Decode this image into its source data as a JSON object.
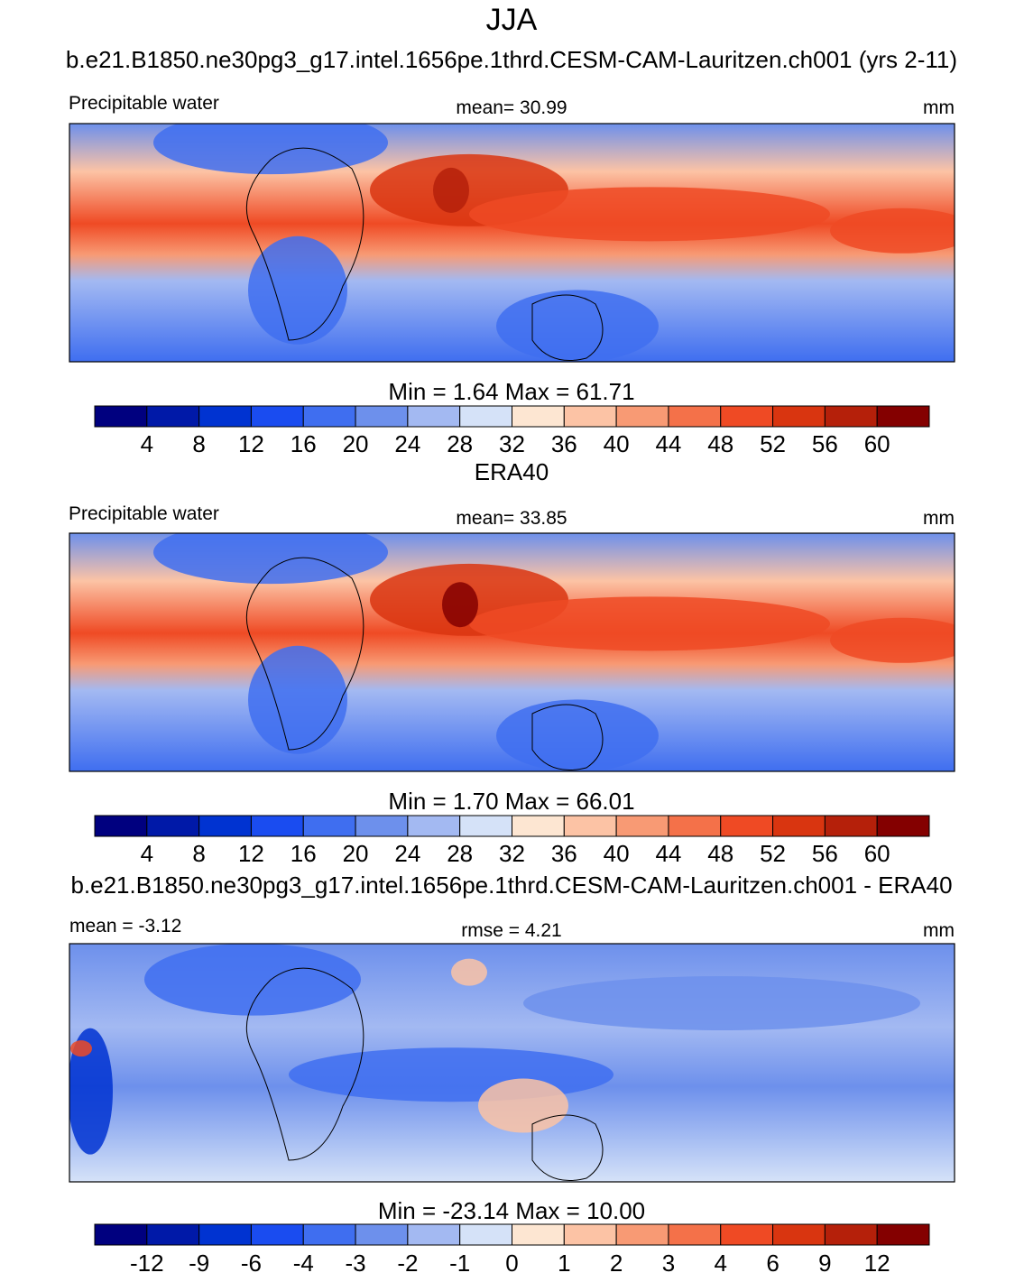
{
  "title": "JJA",
  "panels": [
    {
      "heading": "b.e21.B1850.ne30pg3_g17.intel.1656pe.1thrd.CESM-CAM-Lauritzen.ch001 (yrs 2-11)",
      "left_label": "Precipitable water",
      "center_label": "mean=  30.99",
      "right_label": "mm",
      "minmax": "Min =   1.64 Max =  61.71",
      "colorbar": {
        "colors": [
          "#00007f",
          "#0019a8",
          "#0033d1",
          "#1a4cf0",
          "#3f6ef0",
          "#6d90ec",
          "#a3b9f2",
          "#d5e2f8",
          "#fde6d2",
          "#fcc3a5",
          "#f89a74",
          "#f47149",
          "#ef4a24",
          "#d93510",
          "#b5200a",
          "#840000"
        ],
        "ticks": [
          4,
          8,
          12,
          16,
          20,
          24,
          28,
          32,
          36,
          40,
          44,
          48,
          52,
          56,
          60
        ]
      }
    },
    {
      "heading": "ERA40",
      "left_label": "Precipitable water",
      "center_label": "mean=  33.85",
      "right_label": "mm",
      "minmax": "Min =   1.70 Max =  66.01",
      "colorbar": {
        "colors": [
          "#00007f",
          "#0019a8",
          "#0033d1",
          "#1a4cf0",
          "#3f6ef0",
          "#6d90ec",
          "#a3b9f2",
          "#d5e2f8",
          "#fde6d2",
          "#fcc3a5",
          "#f89a74",
          "#f47149",
          "#ef4a24",
          "#d93510",
          "#b5200a",
          "#840000"
        ],
        "ticks": [
          4,
          8,
          12,
          16,
          20,
          24,
          28,
          32,
          36,
          40,
          44,
          48,
          52,
          56,
          60
        ]
      }
    },
    {
      "heading": "b.e21.B1850.ne30pg3_g17.intel.1656pe.1thrd.CESM-CAM-Lauritzen.ch001 - ERA40",
      "left_label": "mean =  -3.12",
      "center_label": "rmse =   4.21",
      "right_label": "mm",
      "minmax": "Min = -23.14 Max =  10.00",
      "colorbar": {
        "colors": [
          "#00007f",
          "#0019a8",
          "#0033d1",
          "#1a4cf0",
          "#3f6ef0",
          "#6d90ec",
          "#a3b9f2",
          "#d5e2f8",
          "#fde6d2",
          "#fcc3a5",
          "#f89a74",
          "#f47149",
          "#ef4a24",
          "#d93510",
          "#b5200a",
          "#840000"
        ],
        "ticks": [
          -12,
          -9,
          -6,
          -4,
          -3,
          -2,
          -1,
          0,
          1,
          2,
          3,
          4,
          6,
          9,
          12
        ]
      }
    }
  ]
}
